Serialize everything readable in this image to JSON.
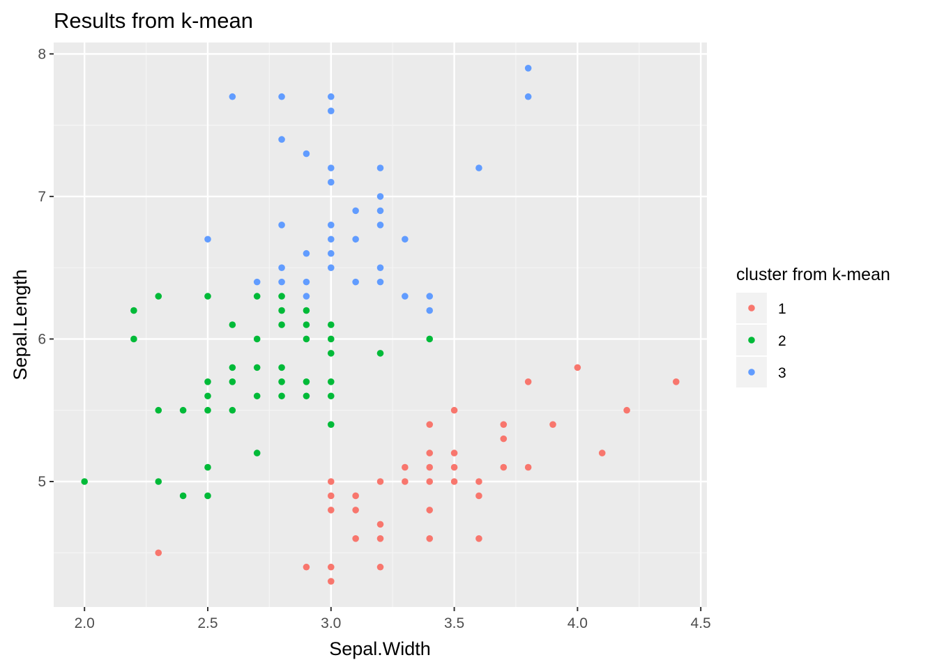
{
  "chart_data": {
    "type": "scatter",
    "title": "Results from k-mean",
    "xlabel": "Sepal.Width",
    "ylabel": "Sepal.Length",
    "xlim": [
      1.875,
      4.525
    ],
    "ylim": [
      4.12,
      8.08
    ],
    "x_ticks": [
      "2.0",
      "2.5",
      "3.0",
      "3.5",
      "4.0",
      "4.5"
    ],
    "x_tick_values": [
      2.0,
      2.5,
      3.0,
      3.5,
      4.0,
      4.5
    ],
    "y_ticks": [
      "5",
      "6",
      "7",
      "8"
    ],
    "y_tick_values": [
      5,
      6,
      7,
      8
    ],
    "grid": true,
    "legend": {
      "title": "cluster from k-mean",
      "position": "right"
    },
    "series": [
      {
        "name": "1",
        "color": "#F8766D",
        "points": [
          [
            2.3,
            4.5
          ],
          [
            2.9,
            4.4
          ],
          [
            3.0,
            4.4
          ],
          [
            3.0,
            4.3
          ],
          [
            3.0,
            5.0
          ],
          [
            3.0,
            4.9
          ],
          [
            3.0,
            4.8
          ],
          [
            3.1,
            4.9
          ],
          [
            3.1,
            4.8
          ],
          [
            3.1,
            4.6
          ],
          [
            3.2,
            5.0
          ],
          [
            3.2,
            4.7
          ],
          [
            3.2,
            4.6
          ],
          [
            3.2,
            4.4
          ],
          [
            3.3,
            5.1
          ],
          [
            3.3,
            5.0
          ],
          [
            3.4,
            5.4
          ],
          [
            3.4,
            5.2
          ],
          [
            3.4,
            5.1
          ],
          [
            3.4,
            5.0
          ],
          [
            3.4,
            4.8
          ],
          [
            3.4,
            4.6
          ],
          [
            3.5,
            5.5
          ],
          [
            3.5,
            5.2
          ],
          [
            3.5,
            5.1
          ],
          [
            3.5,
            5.0
          ],
          [
            3.6,
            5.0
          ],
          [
            3.6,
            4.9
          ],
          [
            3.6,
            4.6
          ],
          [
            3.7,
            5.4
          ],
          [
            3.7,
            5.3
          ],
          [
            3.7,
            5.1
          ],
          [
            3.8,
            5.7
          ],
          [
            3.8,
            5.1
          ],
          [
            3.9,
            5.4
          ],
          [
            4.0,
            5.8
          ],
          [
            4.1,
            5.2
          ],
          [
            4.2,
            5.5
          ],
          [
            4.4,
            5.7
          ]
        ]
      },
      {
        "name": "2",
        "color": "#00BA38",
        "points": [
          [
            2.0,
            5.0
          ],
          [
            2.2,
            6.2
          ],
          [
            2.2,
            6.0
          ],
          [
            2.3,
            6.3
          ],
          [
            2.3,
            5.5
          ],
          [
            2.3,
            5.0
          ],
          [
            2.4,
            5.5
          ],
          [
            2.4,
            4.9
          ],
          [
            2.5,
            6.3
          ],
          [
            2.5,
            5.7
          ],
          [
            2.5,
            5.6
          ],
          [
            2.5,
            5.5
          ],
          [
            2.5,
            5.1
          ],
          [
            2.5,
            4.9
          ],
          [
            2.6,
            6.1
          ],
          [
            2.6,
            5.8
          ],
          [
            2.6,
            5.7
          ],
          [
            2.6,
            5.5
          ],
          [
            2.7,
            6.3
          ],
          [
            2.7,
            6.0
          ],
          [
            2.7,
            5.8
          ],
          [
            2.7,
            5.6
          ],
          [
            2.7,
            5.2
          ],
          [
            2.8,
            6.3
          ],
          [
            2.8,
            6.2
          ],
          [
            2.8,
            6.1
          ],
          [
            2.8,
            5.8
          ],
          [
            2.8,
            5.7
          ],
          [
            2.8,
            5.6
          ],
          [
            2.9,
            6.2
          ],
          [
            2.9,
            6.1
          ],
          [
            2.9,
            6.0
          ],
          [
            2.9,
            5.7
          ],
          [
            2.9,
            5.6
          ],
          [
            3.0,
            6.1
          ],
          [
            3.0,
            6.0
          ],
          [
            3.0,
            5.9
          ],
          [
            3.0,
            5.7
          ],
          [
            3.0,
            5.6
          ],
          [
            3.0,
            5.4
          ],
          [
            3.2,
            5.9
          ],
          [
            3.4,
            6.0
          ]
        ]
      },
      {
        "name": "3",
        "color": "#619CFF",
        "points": [
          [
            2.5,
            6.7
          ],
          [
            2.6,
            7.7
          ],
          [
            2.7,
            6.4
          ],
          [
            2.8,
            7.7
          ],
          [
            2.8,
            7.4
          ],
          [
            2.8,
            6.8
          ],
          [
            2.8,
            6.5
          ],
          [
            2.8,
            6.4
          ],
          [
            2.9,
            7.3
          ],
          [
            2.9,
            6.6
          ],
          [
            2.9,
            6.4
          ],
          [
            2.9,
            6.3
          ],
          [
            3.0,
            7.7
          ],
          [
            3.0,
            7.6
          ],
          [
            3.0,
            7.2
          ],
          [
            3.0,
            7.1
          ],
          [
            3.0,
            6.8
          ],
          [
            3.0,
            6.7
          ],
          [
            3.0,
            6.6
          ],
          [
            3.0,
            6.5
          ],
          [
            3.1,
            6.9
          ],
          [
            3.1,
            6.7
          ],
          [
            3.1,
            6.4
          ],
          [
            3.2,
            7.2
          ],
          [
            3.2,
            7.0
          ],
          [
            3.2,
            6.9
          ],
          [
            3.2,
            6.8
          ],
          [
            3.2,
            6.5
          ],
          [
            3.2,
            6.4
          ],
          [
            3.3,
            6.7
          ],
          [
            3.3,
            6.3
          ],
          [
            3.4,
            6.3
          ],
          [
            3.4,
            6.2
          ],
          [
            3.6,
            7.2
          ],
          [
            3.8,
            7.9
          ],
          [
            3.8,
            7.7
          ]
        ]
      }
    ]
  }
}
